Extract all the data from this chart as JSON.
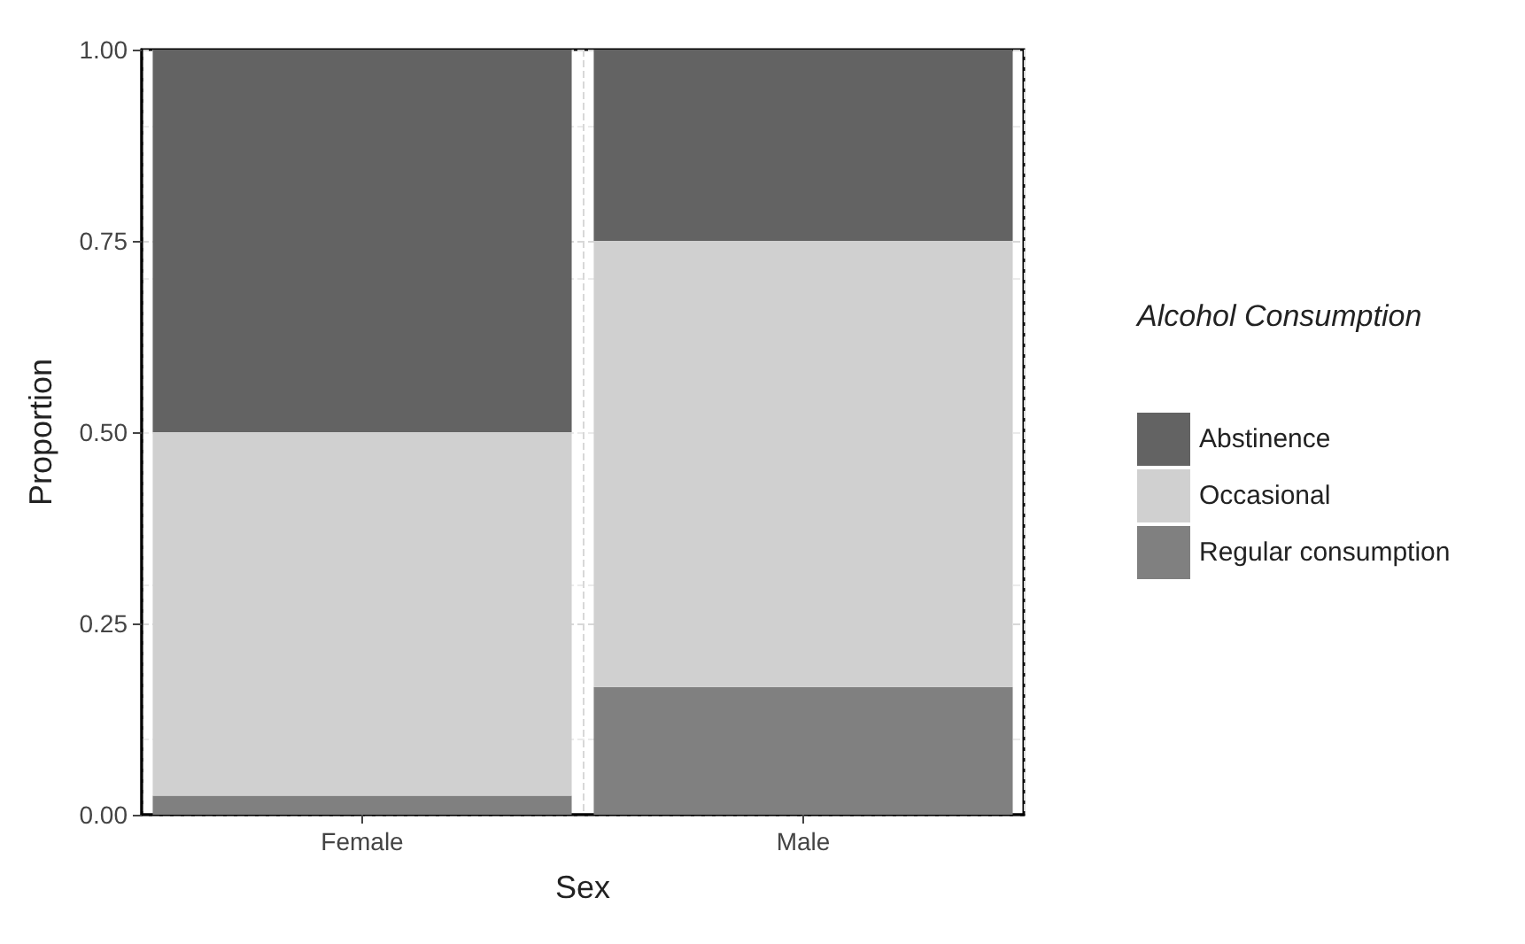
{
  "chart_data": {
    "type": "bar",
    "stacked": true,
    "xlabel": "Sex",
    "ylabel": "Proportion",
    "legend_title": "Alcohol Consumption",
    "legend": "right",
    "grid": true,
    "categories": [
      "Female",
      "Male"
    ],
    "series": [
      {
        "name": "Regular consumption",
        "color": "#808080",
        "values": [
          0.025,
          0.167
        ]
      },
      {
        "name": "Occasional",
        "color": "#d0d0d0",
        "values": [
          0.475,
          0.583
        ]
      },
      {
        "name": "Abstinence",
        "color": "#636363",
        "values": [
          0.5,
          0.25
        ]
      }
    ],
    "ylim": [
      0,
      1
    ],
    "yticks": [
      {
        "value": 0,
        "label": "0.00"
      },
      {
        "value": 0.25,
        "label": "0.25"
      },
      {
        "value": 0.5,
        "label": "0.50"
      },
      {
        "value": 0.75,
        "label": "0.75"
      },
      {
        "value": 1,
        "label": "1.00"
      }
    ]
  }
}
